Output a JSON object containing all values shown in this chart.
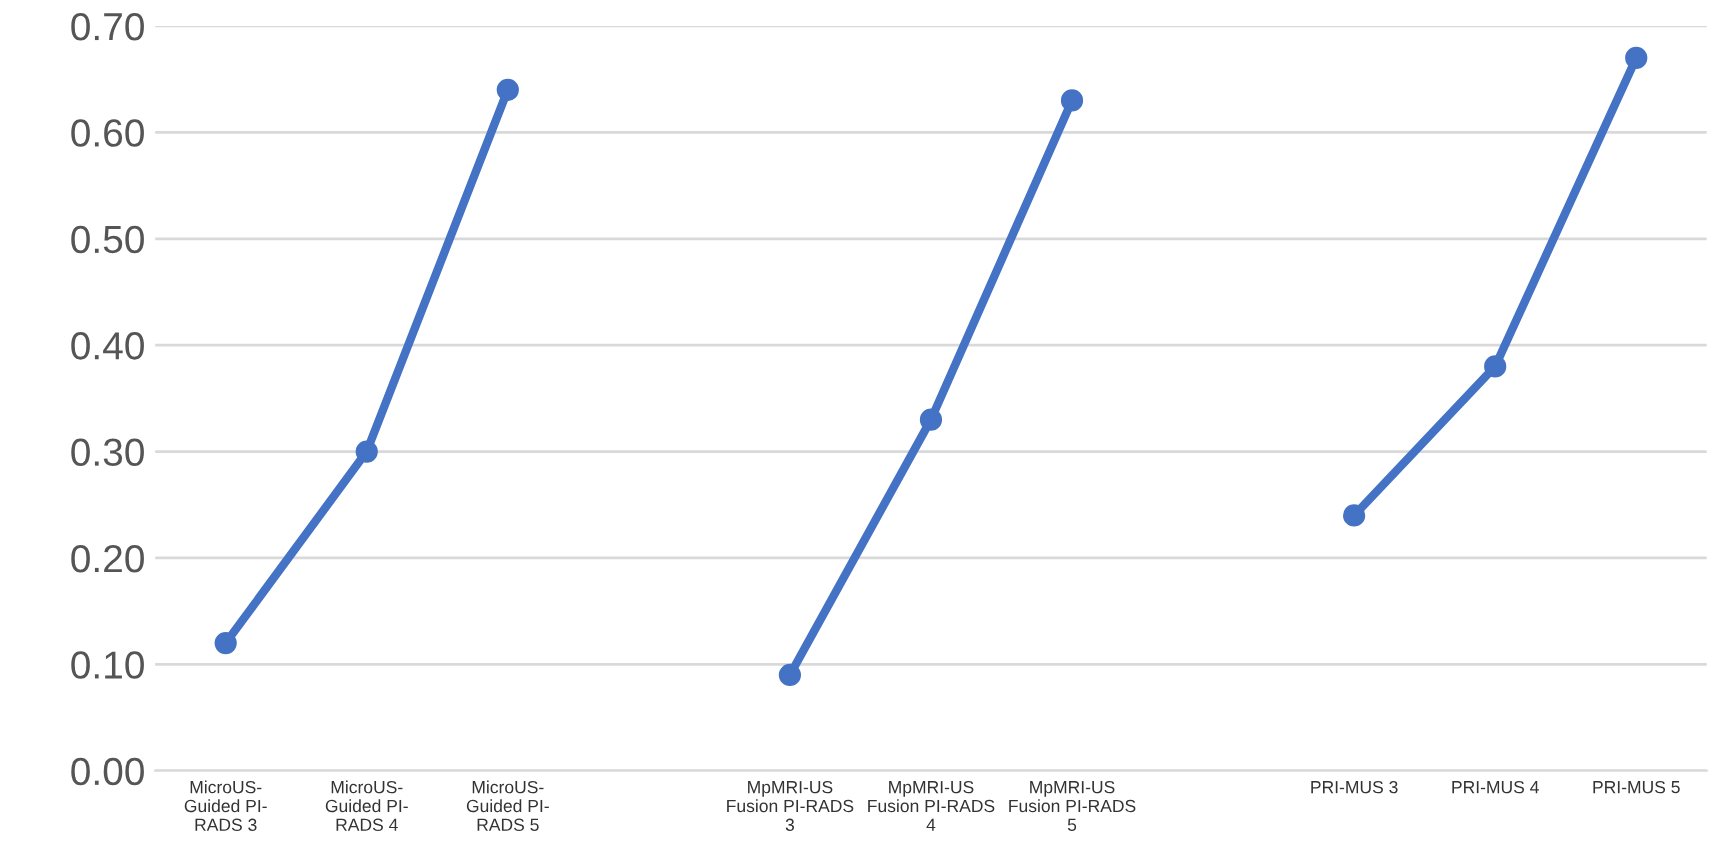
{
  "chart_data": {
    "type": "line",
    "categories": [
      "MicroUS-\nGuided PI-\nRADS 3",
      "MicroUS-\nGuided PI-\nRADS 4",
      "MicroUS-\nGuided PI-\nRADS 5",
      null,
      "MpMRI-US\nFusion PI-RADS\n3",
      "MpMRI-US\nFusion PI-RADS\n4",
      "MpMRI-US\nFusion PI-RADS\n5",
      null,
      "PRI-MUS 3",
      "PRI-MUS 4",
      "PRI-MUS 5"
    ],
    "series": [
      {
        "color": "#4472c4",
        "values": [
          0.12,
          0.3,
          0.64,
          null,
          0.09,
          0.33,
          0.63,
          null,
          0.24,
          0.38,
          0.67
        ]
      }
    ],
    "ylim": [
      0,
      0.7
    ],
    "yticks": [
      {
        "value": 0,
        "label": "0.00"
      },
      {
        "value": 0.1,
        "label": "0.10"
      },
      {
        "value": 0.2,
        "label": "0.20"
      },
      {
        "value": 0.3,
        "label": "0.30"
      },
      {
        "value": 0.4,
        "label": "0.40"
      },
      {
        "value": 0.5,
        "label": "0.50"
      },
      {
        "value": 0.6,
        "label": "0.60"
      },
      {
        "value": 0.7,
        "label": "0.70"
      }
    ],
    "grid": "y",
    "marker": "circle",
    "line_style": "solid"
  }
}
